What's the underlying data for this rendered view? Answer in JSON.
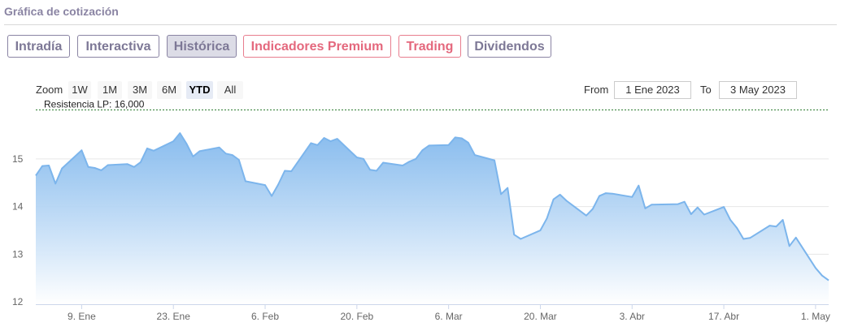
{
  "header": {
    "title": "Gráfica de cotización"
  },
  "tabs": [
    {
      "label": "Intradía",
      "style": "normal"
    },
    {
      "label": "Interactiva",
      "style": "normal"
    },
    {
      "label": "Histórica",
      "style": "active"
    },
    {
      "label": "Indicadores Premium",
      "style": "premium"
    },
    {
      "label": "Trading",
      "style": "premium"
    },
    {
      "label": "Dividendos",
      "style": "normal"
    }
  ],
  "range_selector": {
    "zoom_label": "Zoom",
    "buttons": [
      "1W",
      "1M",
      "3M",
      "6M",
      "YTD",
      "All"
    ],
    "selected": "YTD",
    "from_label": "From",
    "from_value": "1 Ene 2023",
    "to_label": "To",
    "to_value": "3 May 2023"
  },
  "colors": {
    "tab_normal": "#8a84a3",
    "tab_premium": "#e87d8e",
    "series_line": "#7cb5ec",
    "fill_top": "#7cb5ec",
    "fill_bottom": "#ffffff",
    "resistance_line": "#2e7d32"
  },
  "chart_data": {
    "type": "area",
    "title": "",
    "xlabel": "",
    "ylabel": "",
    "ylim": [
      11.95,
      15.95
    ],
    "yticks": [
      12,
      13,
      14,
      15
    ],
    "x_tick_labels": [
      "9. Ene",
      "23. Ene",
      "6. Feb",
      "20. Feb",
      "6. Mar",
      "20. Mar",
      "3. Abr",
      "17. Abr",
      "1. May"
    ],
    "x_tick_dates": [
      "2023-01-09",
      "2023-01-23",
      "2023-02-06",
      "2023-02-20",
      "2023-03-06",
      "2023-03-20",
      "2023-04-03",
      "2023-04-17",
      "2023-05-01"
    ],
    "x_range": [
      "2023-01-02",
      "2023-05-03"
    ],
    "grid": true,
    "annotations": [
      {
        "label": "Resistencia LP: 16,000",
        "y": 16.0,
        "style": "dashed"
      }
    ],
    "series": [
      {
        "x": [
          "2023-01-02",
          "2023-01-03",
          "2023-01-04",
          "2023-01-05",
          "2023-01-06",
          "2023-01-09",
          "2023-01-10",
          "2023-01-11",
          "2023-01-12",
          "2023-01-13",
          "2023-01-16",
          "2023-01-17",
          "2023-01-18",
          "2023-01-19",
          "2023-01-20",
          "2023-01-23",
          "2023-01-24",
          "2023-01-25",
          "2023-01-26",
          "2023-01-27",
          "2023-01-30",
          "2023-01-31",
          "2023-02-01",
          "2023-02-02",
          "2023-02-03",
          "2023-02-06",
          "2023-02-07",
          "2023-02-08",
          "2023-02-09",
          "2023-02-10",
          "2023-02-13",
          "2023-02-14",
          "2023-02-15",
          "2023-02-16",
          "2023-02-17",
          "2023-02-20",
          "2023-02-21",
          "2023-02-22",
          "2023-02-23",
          "2023-02-24",
          "2023-02-27",
          "2023-02-28",
          "2023-03-01",
          "2023-03-02",
          "2023-03-03",
          "2023-03-06",
          "2023-03-07",
          "2023-03-08",
          "2023-03-09",
          "2023-03-10",
          "2023-03-13",
          "2023-03-14",
          "2023-03-15",
          "2023-03-16",
          "2023-03-17",
          "2023-03-20",
          "2023-03-21",
          "2023-03-22",
          "2023-03-23",
          "2023-03-24",
          "2023-03-27",
          "2023-03-28",
          "2023-03-29",
          "2023-03-30",
          "2023-03-31",
          "2023-04-03",
          "2023-04-04",
          "2023-04-05",
          "2023-04-06",
          "2023-04-10",
          "2023-04-11",
          "2023-04-12",
          "2023-04-13",
          "2023-04-14",
          "2023-04-17",
          "2023-04-18",
          "2023-04-19",
          "2023-04-20",
          "2023-04-21",
          "2023-04-24",
          "2023-04-25",
          "2023-04-26",
          "2023-04-27",
          "2023-04-28",
          "2023-05-01",
          "2023-05-02",
          "2023-05-03"
        ],
        "values": [
          14.65,
          14.85,
          14.86,
          14.48,
          14.8,
          15.18,
          14.83,
          14.81,
          14.76,
          14.87,
          14.89,
          14.83,
          14.93,
          15.22,
          15.17,
          15.37,
          15.54,
          15.32,
          15.05,
          15.16,
          15.24,
          15.11,
          15.08,
          14.98,
          14.53,
          14.45,
          14.22,
          14.46,
          14.75,
          14.74,
          15.33,
          15.29,
          15.44,
          15.37,
          15.42,
          15.03,
          15.0,
          14.77,
          14.75,
          14.92,
          14.86,
          14.94,
          15.0,
          15.18,
          15.28,
          15.29,
          15.45,
          15.43,
          15.34,
          15.08,
          14.97,
          14.26,
          14.39,
          13.41,
          13.32,
          13.5,
          13.75,
          14.15,
          14.25,
          14.12,
          13.81,
          13.95,
          14.22,
          14.28,
          14.27,
          14.2,
          14.44,
          13.96,
          14.04,
          14.05,
          14.1,
          13.84,
          13.98,
          13.83,
          13.99,
          13.72,
          13.55,
          13.32,
          13.34,
          13.6,
          13.58,
          13.72,
          13.17,
          13.35,
          12.71,
          12.55,
          12.45
        ]
      }
    ]
  }
}
